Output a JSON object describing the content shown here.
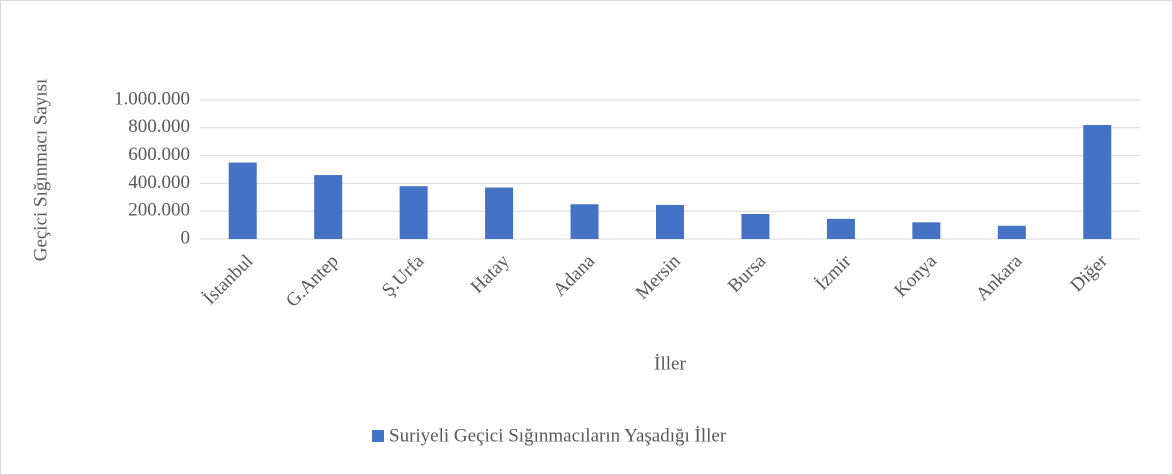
{
  "chart_data": {
    "type": "bar",
    "x_label": "İller",
    "y_label": "Geçici Sığınmacı Sayısı",
    "categories": [
      "İstanbul",
      "G.Antep",
      "Ş.Urfa",
      "Hatay",
      "Adana",
      "Mersin",
      "Bursa",
      "İzmir",
      "Konya",
      "Ankara",
      "Diğer"
    ],
    "series": [
      {
        "name": "Suriyeli Geçici Sığınmacıların Yaşadığı İller",
        "color": "#4472c4",
        "values": [
          550000,
          460000,
          380000,
          370000,
          250000,
          245000,
          180000,
          145000,
          120000,
          95000,
          820000
        ]
      }
    ],
    "ylim": [
      0,
      1000000
    ],
    "yticks": [
      0,
      {
        "value": 200000,
        "label": "200.000"
      },
      {
        "value": 400000,
        "label": "400.000"
      },
      {
        "value": 600000,
        "label": "600.000"
      },
      {
        "value": 800000,
        "label": "800.000"
      },
      {
        "value": 1000000,
        "label": "1.000.000"
      }
    ],
    "grid": true,
    "legend": "bottom"
  }
}
